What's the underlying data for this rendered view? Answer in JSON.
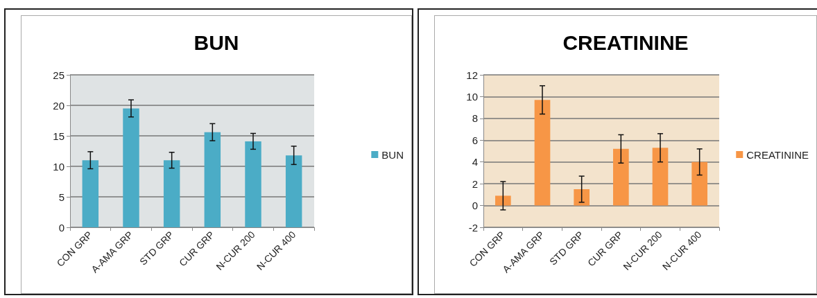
{
  "chart_data": [
    {
      "type": "bar",
      "title": "BUN",
      "categories": [
        "CON GRP",
        "A-AMA GRP",
        "STD GRP",
        "CUR GRP",
        "N-CUR 200",
        "N-CUR 400"
      ],
      "series": [
        {
          "name": "BUN",
          "color": "#4bacc6",
          "values": [
            11,
            19.5,
            11,
            15.6,
            14.1,
            11.8
          ],
          "errors": [
            1.4,
            1.4,
            1.3,
            1.4,
            1.3,
            1.5
          ]
        }
      ],
      "ylim": [
        0,
        25
      ],
      "yticks": [
        0,
        5,
        10,
        15,
        20,
        25
      ],
      "grid": "y",
      "legend": "right"
    },
    {
      "type": "bar",
      "title": "CREATININE",
      "categories": [
        "CON GRP",
        "A-AMA GRP",
        "STD GRP",
        "CUR GRP",
        "N-CUR 200",
        "N-CUR 400"
      ],
      "series": [
        {
          "name": "CREATININE",
          "color": "#f79646",
          "values": [
            0.9,
            9.7,
            1.5,
            5.2,
            5.3,
            4.0
          ],
          "errors": [
            1.3,
            1.3,
            1.2,
            1.3,
            1.3,
            1.2
          ]
        }
      ],
      "ylim": [
        -2,
        12
      ],
      "yticks": [
        -2,
        0,
        2,
        4,
        6,
        8,
        10,
        12
      ],
      "grid": "y",
      "legend": "right"
    }
  ]
}
